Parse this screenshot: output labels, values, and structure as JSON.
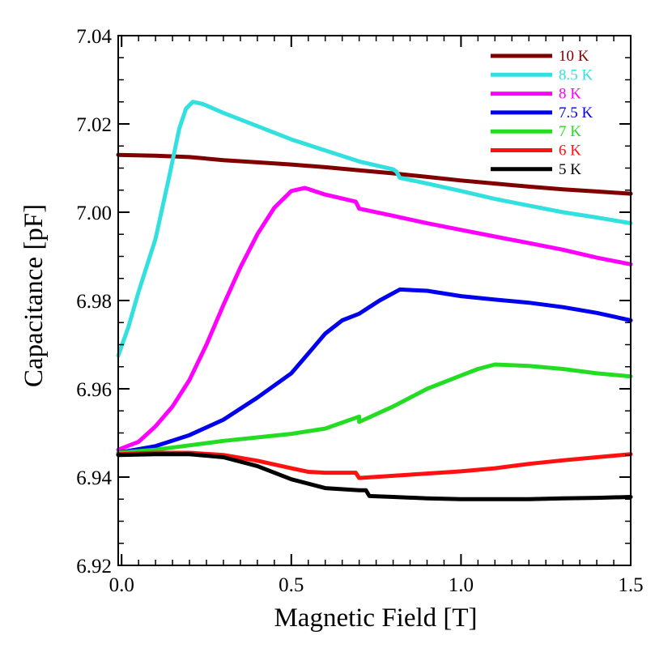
{
  "chart_data": {
    "type": "line",
    "title": "",
    "xlabel": "Magnetic Field [T]",
    "ylabel": "Capacitance [pF]",
    "xlim": [
      -0.01,
      1.5
    ],
    "ylim": [
      6.92,
      7.04
    ],
    "x_ticks": [
      0.0,
      0.5,
      1.0,
      1.5
    ],
    "x_tick_labels": [
      "0.0",
      "0.5",
      "1.0",
      "1.5"
    ],
    "y_ticks": [
      6.92,
      6.94,
      6.96,
      6.98,
      7.0,
      7.02,
      7.04
    ],
    "y_tick_labels": [
      "6.92",
      "6.94",
      "6.96",
      "6.98",
      "7.00",
      "7.02",
      "7.04"
    ],
    "grid": false,
    "legend_position": "top-right",
    "series": [
      {
        "name": "10 K",
        "color": "#800000",
        "points": [
          [
            -0.01,
            7.013
          ],
          [
            0.1,
            7.0128
          ],
          [
            0.2,
            7.0125
          ],
          [
            0.3,
            7.0118
          ],
          [
            0.4,
            7.0113
          ],
          [
            0.5,
            7.0108
          ],
          [
            0.6,
            7.0102
          ],
          [
            0.7,
            7.0095
          ],
          [
            0.8,
            7.0088
          ],
          [
            0.9,
            7.008
          ],
          [
            1.0,
            7.0072
          ],
          [
            1.1,
            7.0065
          ],
          [
            1.2,
            7.0058
          ],
          [
            1.3,
            7.0052
          ],
          [
            1.4,
            7.0047
          ],
          [
            1.5,
            7.0042
          ]
        ]
      },
      {
        "name": "8.5 K",
        "color": "#33e0e0",
        "points": [
          [
            -0.01,
            6.9675
          ],
          [
            0.02,
            6.974
          ],
          [
            0.05,
            6.982
          ],
          [
            0.1,
            6.994
          ],
          [
            0.14,
            7.008
          ],
          [
            0.17,
            7.019
          ],
          [
            0.19,
            7.0235
          ],
          [
            0.21,
            7.025
          ],
          [
            0.24,
            7.0245
          ],
          [
            0.3,
            7.0225
          ],
          [
            0.4,
            7.0195
          ],
          [
            0.5,
            7.0165
          ],
          [
            0.6,
            7.014
          ],
          [
            0.7,
            7.0115
          ],
          [
            0.8,
            7.0097
          ],
          [
            0.81,
            7.0092
          ],
          [
            0.82,
            7.0078
          ],
          [
            0.9,
            7.0065
          ],
          [
            1.0,
            7.0048
          ],
          [
            1.1,
            7.003
          ],
          [
            1.2,
            7.0015
          ],
          [
            1.3,
            7.0
          ],
          [
            1.4,
            6.9988
          ],
          [
            1.5,
            6.9975
          ]
        ]
      },
      {
        "name": "8 K",
        "color": "#ff00ff",
        "points": [
          [
            -0.01,
            6.9462
          ],
          [
            0.05,
            6.948
          ],
          [
            0.1,
            6.9515
          ],
          [
            0.15,
            6.956
          ],
          [
            0.2,
            6.962
          ],
          [
            0.25,
            6.97
          ],
          [
            0.3,
            6.979
          ],
          [
            0.35,
            6.9875
          ],
          [
            0.4,
            6.995
          ],
          [
            0.45,
            7.001
          ],
          [
            0.5,
            7.0048
          ],
          [
            0.54,
            7.0055
          ],
          [
            0.6,
            7.004
          ],
          [
            0.69,
            7.0024
          ],
          [
            0.7,
            7.0008
          ],
          [
            0.8,
            6.9992
          ],
          [
            0.9,
            6.9975
          ],
          [
            1.0,
            6.996
          ],
          [
            1.1,
            6.9945
          ],
          [
            1.2,
            6.993
          ],
          [
            1.3,
            6.9915
          ],
          [
            1.4,
            6.9897
          ],
          [
            1.5,
            6.9882
          ]
        ]
      },
      {
        "name": "7.5 K",
        "color": "#0000ee",
        "points": [
          [
            -0.01,
            6.9455
          ],
          [
            0.1,
            6.947
          ],
          [
            0.2,
            6.9495
          ],
          [
            0.3,
            6.953
          ],
          [
            0.4,
            6.958
          ],
          [
            0.5,
            6.9635
          ],
          [
            0.55,
            6.968
          ],
          [
            0.6,
            6.9725
          ],
          [
            0.65,
            6.9755
          ],
          [
            0.7,
            6.977
          ],
          [
            0.72,
            6.978
          ],
          [
            0.76,
            6.98
          ],
          [
            0.82,
            6.9825
          ],
          [
            0.9,
            6.9822
          ],
          [
            1.0,
            6.981
          ],
          [
            1.1,
            6.9802
          ],
          [
            1.2,
            6.9795
          ],
          [
            1.3,
            6.9785
          ],
          [
            1.4,
            6.9772
          ],
          [
            1.5,
            6.9755
          ]
        ]
      },
      {
        "name": "7 K",
        "color": "#22dd22",
        "points": [
          [
            -0.01,
            6.9455
          ],
          [
            0.1,
            6.9462
          ],
          [
            0.2,
            6.9472
          ],
          [
            0.3,
            6.9482
          ],
          [
            0.4,
            6.949
          ],
          [
            0.5,
            6.9498
          ],
          [
            0.6,
            6.951
          ],
          [
            0.7,
            6.9537
          ],
          [
            0.7,
            6.9525
          ],
          [
            0.8,
            6.956
          ],
          [
            0.9,
            6.96
          ],
          [
            1.0,
            6.963
          ],
          [
            1.05,
            6.9645
          ],
          [
            1.1,
            6.9655
          ],
          [
            1.2,
            6.9652
          ],
          [
            1.3,
            6.9645
          ],
          [
            1.4,
            6.9635
          ],
          [
            1.5,
            6.9628
          ]
        ]
      },
      {
        "name": "6 K",
        "color": "#ff1111",
        "points": [
          [
            -0.01,
            6.9452
          ],
          [
            0.1,
            6.9455
          ],
          [
            0.2,
            6.9455
          ],
          [
            0.3,
            6.945
          ],
          [
            0.4,
            6.9437
          ],
          [
            0.5,
            6.942
          ],
          [
            0.55,
            6.9412
          ],
          [
            0.6,
            6.941
          ],
          [
            0.69,
            6.941
          ],
          [
            0.7,
            6.9398
          ],
          [
            0.8,
            6.9403
          ],
          [
            0.9,
            6.9408
          ],
          [
            1.0,
            6.9413
          ],
          [
            1.1,
            6.942
          ],
          [
            1.2,
            6.943
          ],
          [
            1.3,
            6.9438
          ],
          [
            1.4,
            6.9445
          ],
          [
            1.5,
            6.9452
          ]
        ]
      },
      {
        "name": "5 K",
        "color": "#000000",
        "points": [
          [
            -0.01,
            6.945
          ],
          [
            0.1,
            6.9452
          ],
          [
            0.2,
            6.9452
          ],
          [
            0.3,
            6.9445
          ],
          [
            0.4,
            6.9425
          ],
          [
            0.5,
            6.9395
          ],
          [
            0.6,
            6.9375
          ],
          [
            0.7,
            6.937
          ],
          [
            0.72,
            6.937
          ],
          [
            0.73,
            6.9357
          ],
          [
            0.8,
            6.9355
          ],
          [
            0.9,
            6.9352
          ],
          [
            1.0,
            6.935
          ],
          [
            1.1,
            6.935
          ],
          [
            1.2,
            6.935
          ],
          [
            1.3,
            6.9352
          ],
          [
            1.4,
            6.9353
          ],
          [
            1.5,
            6.9355
          ]
        ]
      }
    ]
  }
}
